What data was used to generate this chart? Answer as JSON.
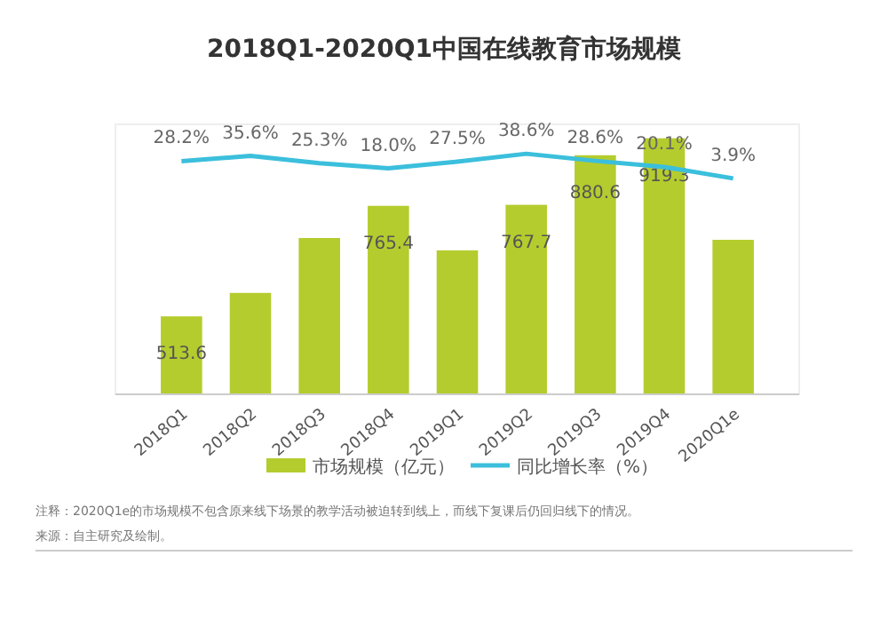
{
  "chart_data": {
    "type": "bar",
    "title": "2018Q1-2020Q1中国在线教育市场规模",
    "categories": [
      "2018Q1",
      "2018Q2",
      "2018Q3",
      "2018Q4",
      "2019Q1",
      "2019Q2",
      "2019Q3",
      "2019Q4",
      "2020Q1e"
    ],
    "series": [
      {
        "name": "市场规模（亿元）",
        "color": "#b5cc2e",
        "values": [
          513.6,
          567,
          692,
          765.4,
          664,
          767.7,
          880.6,
          919.3,
          688
        ],
        "value_labels": [
          "513.6",
          null,
          null,
          "765.4",
          null,
          "767.7",
          "880.6",
          "919.3",
          null
        ]
      },
      {
        "name": "同比增长率（%）",
        "type": "line",
        "axis": "y2",
        "color": "#3bbfdc",
        "values": [
          28.2,
          35.6,
          25.3,
          18.0,
          27.5,
          38.6,
          28.6,
          20.1,
          3.9
        ],
        "value_labels": [
          "28.2%",
          "35.6%",
          "25.3%",
          "18.0%",
          "27.5%",
          "38.6%",
          "28.6%",
          "20.1%",
          "3.9%"
        ]
      }
    ],
    "ylim": [
      336,
      951
    ],
    "y2lim": [
      -300,
      80
    ],
    "tick_labels": "x",
    "legend": "bottom",
    "marker": "none",
    "line_style": "solid",
    "annotations": [
      "注释：2020Q1e的市场规模不包含原来线下场景的教学活动被迫转到线上，而线下复课后仍回归线下的情况。",
      "来源：自主研究及绘制。"
    ]
  }
}
